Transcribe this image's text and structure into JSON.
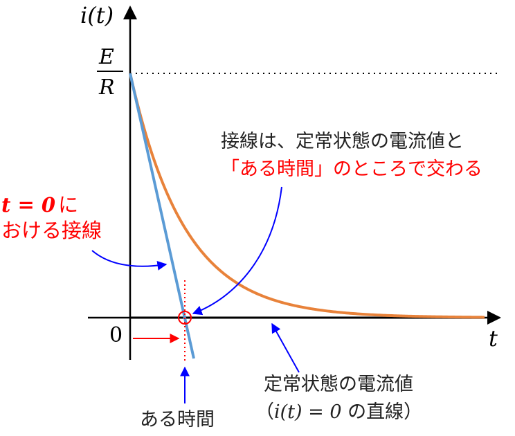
{
  "axes": {
    "y_label": "i(t)",
    "x_label": "t",
    "origin_label": "0",
    "level_numerator": "E",
    "level_denominator": "R"
  },
  "annotations": {
    "tangent_label_line1_math": "t = 0",
    "tangent_label_line1_text": "に",
    "tangent_label_line2": "おける接線",
    "intersection_line1": "接線は、定常状態の電流値と",
    "intersection_line2": "「ある時間」のところで交わる",
    "time_label": "ある時間",
    "steady_label_line1": "定常状態の電流値",
    "steady_label_line2_open": "（",
    "steady_label_line2_math": "i(t) = 0",
    "steady_label_line2_close": " の直線）"
  },
  "colors": {
    "curve": "#e8823a",
    "tangent": "#5b9bd5",
    "steady_line": "#a0a0a0",
    "axis": "#000000",
    "red": "#ff0000",
    "blue": "#0000ff"
  },
  "chart_data": {
    "type": "line",
    "series": [
      {
        "kind": "exponential_decay",
        "y0": 1,
        "tau": 1
      },
      {
        "kind": "tangent_at_t0",
        "y0": 1,
        "slope": -1
      },
      {
        "kind": "steady_state",
        "y": 0
      }
    ]
  }
}
